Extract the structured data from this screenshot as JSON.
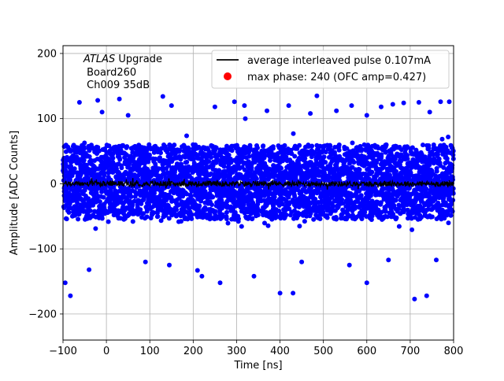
{
  "chart_data": {
    "type": "scatter",
    "title": "",
    "xlabel": "Time [ns]",
    "ylabel": "Amplitude [ADC Counts]",
    "xlim": [
      -100,
      800
    ],
    "ylim": [
      -240,
      212
    ],
    "xticks": [
      -100,
      0,
      100,
      200,
      300,
      400,
      500,
      600,
      700,
      800
    ],
    "yticks": [
      -200,
      -100,
      0,
      100,
      200
    ],
    "grid": true,
    "legend_position": "top-right",
    "annotation": {
      "line1_italic": "ATLAS",
      "line1_rest": " Upgrade",
      "line2": " Board260",
      "line3": " Ch009 35dB"
    },
    "series": [
      {
        "name": "average interleaved pulse 0.107mA",
        "type": "line",
        "color": "#000000",
        "description_values": {
          "x_start": -100,
          "x_end": 800,
          "y_level": 0,
          "noise_amplitude": 8
        }
      },
      {
        "name": "max phase: 240 (OFC amp=0.427)",
        "type": "scatter",
        "color": "#0000ff",
        "points": [
          [
            -95,
            -152
          ],
          [
            -83,
            -172
          ],
          [
            -62,
            125
          ],
          [
            -20,
            128
          ],
          [
            30,
            130
          ],
          [
            130,
            134
          ],
          [
            295,
            126
          ],
          [
            318,
            120
          ],
          [
            485,
            135
          ],
          [
            633,
            118
          ],
          [
            685,
            124
          ],
          [
            720,
            125
          ],
          [
            770,
            126
          ],
          [
            790,
            126
          ],
          [
            710,
            -177
          ],
          [
            738,
            -172
          ],
          [
            400,
            -168
          ],
          [
            430,
            -168
          ],
          [
            340,
            -142
          ],
          [
            262,
            -152
          ],
          [
            220,
            -142
          ],
          [
            600,
            -152
          ],
          [
            210,
            -133
          ],
          [
            -40,
            -132
          ],
          [
            90,
            -120
          ],
          [
            145,
            -125
          ],
          [
            450,
            -120
          ],
          [
            560,
            -125
          ],
          [
            650,
            -117
          ],
          [
            760,
            -117
          ],
          [
            660,
            122
          ],
          [
            565,
            120
          ],
          [
            150,
            120
          ],
          [
            -10,
            110
          ],
          [
            50,
            105
          ],
          [
            250,
            118
          ],
          [
            370,
            112
          ],
          [
            420,
            120
          ],
          [
            530,
            112
          ],
          [
            600,
            105
          ],
          [
            745,
            110
          ],
          [
            470,
            108
          ],
          [
            320,
            100
          ]
        ],
        "bulk_band": {
          "y_low": -115,
          "y_high": 112,
          "dense_low": -55,
          "dense_high": 60,
          "x_step": 2
        }
      }
    ]
  }
}
